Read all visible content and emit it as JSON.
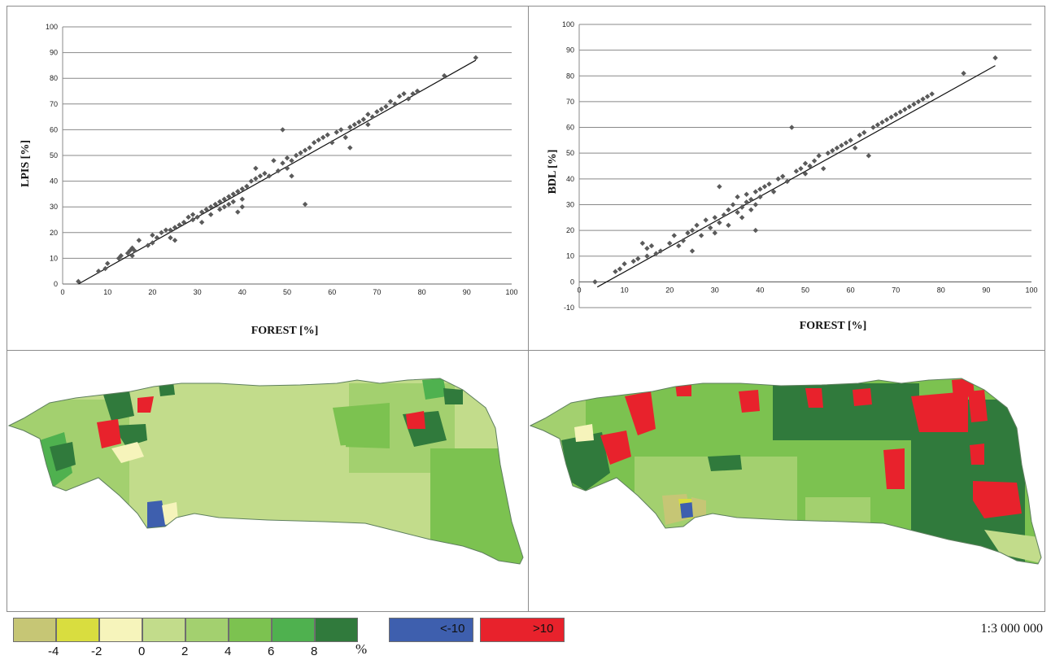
{
  "chart_data": [
    {
      "type": "scatter",
      "title": "",
      "xlabel": "FOREST [%]",
      "ylabel": "LPIS [%]",
      "xlim": [
        0,
        100
      ],
      "ylim": [
        0,
        100
      ],
      "xticks": [
        0,
        10,
        20,
        30,
        40,
        50,
        60,
        70,
        80,
        90,
        100
      ],
      "yticks": [
        0,
        10,
        20,
        30,
        40,
        50,
        60,
        70,
        80,
        90,
        100
      ],
      "grid": "horizontal",
      "trendline": {
        "x": [
          3.5,
          92
        ],
        "y": [
          0,
          87
        ]
      },
      "points": [
        [
          3.5,
          1
        ],
        [
          8,
          5
        ],
        [
          9.5,
          6
        ],
        [
          10,
          8
        ],
        [
          12.5,
          10
        ],
        [
          13,
          11
        ],
        [
          14.5,
          12
        ],
        [
          15,
          13
        ],
        [
          15.5,
          14
        ],
        [
          16,
          13
        ],
        [
          15.5,
          11
        ],
        [
          17,
          17
        ],
        [
          19,
          15
        ],
        [
          20,
          16
        ],
        [
          20,
          19
        ],
        [
          21,
          18
        ],
        [
          22,
          20
        ],
        [
          23,
          21
        ],
        [
          24,
          18
        ],
        [
          24,
          21
        ],
        [
          25,
          22
        ],
        [
          25,
          17
        ],
        [
          26,
          23
        ],
        [
          27,
          24
        ],
        [
          28,
          26
        ],
        [
          29,
          27
        ],
        [
          29,
          25
        ],
        [
          30,
          26
        ],
        [
          31,
          24
        ],
        [
          31,
          28
        ],
        [
          32,
          29
        ],
        [
          33,
          30
        ],
        [
          33,
          27
        ],
        [
          34,
          31
        ],
        [
          35,
          32
        ],
        [
          35,
          29
        ],
        [
          36,
          33
        ],
        [
          36,
          30
        ],
        [
          37,
          34
        ],
        [
          37,
          31
        ],
        [
          38,
          35
        ],
        [
          38,
          32
        ],
        [
          39,
          36
        ],
        [
          39,
          28
        ],
        [
          40,
          30
        ],
        [
          40,
          33
        ],
        [
          40,
          37
        ],
        [
          41,
          38
        ],
        [
          42,
          40
        ],
        [
          43,
          45
        ],
        [
          43,
          41
        ],
        [
          44,
          42
        ],
        [
          45,
          43
        ],
        [
          46,
          42
        ],
        [
          47,
          48
        ],
        [
          48,
          44
        ],
        [
          49,
          47
        ],
        [
          49,
          60
        ],
        [
          50,
          49
        ],
        [
          50,
          45
        ],
        [
          51,
          48
        ],
        [
          51,
          42
        ],
        [
          52,
          50
        ],
        [
          53,
          51
        ],
        [
          54,
          52
        ],
        [
          54,
          31
        ],
        [
          55,
          53
        ],
        [
          56,
          55
        ],
        [
          57,
          56
        ],
        [
          58,
          57
        ],
        [
          59,
          58
        ],
        [
          60,
          55
        ],
        [
          61,
          59
        ],
        [
          62,
          60
        ],
        [
          63,
          57
        ],
        [
          64,
          61
        ],
        [
          64,
          53
        ],
        [
          65,
          62
        ],
        [
          66,
          63
        ],
        [
          67,
          64
        ],
        [
          68,
          66
        ],
        [
          68,
          62
        ],
        [
          69,
          65
        ],
        [
          70,
          67
        ],
        [
          71,
          68
        ],
        [
          72,
          69
        ],
        [
          73,
          71
        ],
        [
          74,
          70
        ],
        [
          75,
          73
        ],
        [
          76,
          74
        ],
        [
          77,
          72
        ],
        [
          78,
          74
        ],
        [
          79,
          75
        ],
        [
          85,
          81
        ],
        [
          92,
          88
        ]
      ]
    },
    {
      "type": "scatter",
      "title": "",
      "xlabel": "FOREST [%]",
      "ylabel": "BDL [%]",
      "xlim": [
        0,
        100
      ],
      "ylim": [
        -10,
        100
      ],
      "xticks": [
        0,
        10,
        20,
        30,
        40,
        50,
        60,
        70,
        80,
        90,
        100
      ],
      "yticks": [
        -10,
        0,
        10,
        20,
        30,
        40,
        50,
        60,
        70,
        80,
        90,
        100
      ],
      "grid": "horizontal",
      "trendline": {
        "x": [
          4,
          92
        ],
        "y": [
          -2,
          84
        ]
      },
      "points": [
        [
          3.5,
          0
        ],
        [
          8,
          4
        ],
        [
          9,
          5
        ],
        [
          10,
          7
        ],
        [
          12,
          8
        ],
        [
          13,
          9
        ],
        [
          14,
          15
        ],
        [
          15,
          10
        ],
        [
          15,
          13
        ],
        [
          16,
          14
        ],
        [
          17,
          11
        ],
        [
          18,
          12
        ],
        [
          20,
          15
        ],
        [
          21,
          18
        ],
        [
          22,
          14
        ],
        [
          23,
          16
        ],
        [
          24,
          19
        ],
        [
          25,
          20
        ],
        [
          25,
          12
        ],
        [
          26,
          22
        ],
        [
          27,
          18
        ],
        [
          28,
          24
        ],
        [
          29,
          21
        ],
        [
          30,
          19
        ],
        [
          30,
          25
        ],
        [
          31,
          23
        ],
        [
          31,
          37
        ],
        [
          32,
          26
        ],
        [
          33,
          28
        ],
        [
          33,
          22
        ],
        [
          34,
          30
        ],
        [
          35,
          27
        ],
        [
          35,
          33
        ],
        [
          36,
          29
        ],
        [
          36,
          25
        ],
        [
          37,
          31
        ],
        [
          37,
          34
        ],
        [
          38,
          32
        ],
        [
          38,
          28
        ],
        [
          39,
          35
        ],
        [
          39,
          20
        ],
        [
          39,
          30
        ],
        [
          40,
          36
        ],
        [
          40,
          33
        ],
        [
          41,
          37
        ],
        [
          42,
          38
        ],
        [
          43,
          35
        ],
        [
          44,
          40
        ],
        [
          45,
          41
        ],
        [
          46,
          39
        ],
        [
          47,
          60
        ],
        [
          48,
          43
        ],
        [
          49,
          44
        ],
        [
          50,
          42
        ],
        [
          50,
          46
        ],
        [
          51,
          45
        ],
        [
          52,
          47
        ],
        [
          53,
          49
        ],
        [
          54,
          44
        ],
        [
          55,
          50
        ],
        [
          56,
          51
        ],
        [
          57,
          52
        ],
        [
          58,
          53
        ],
        [
          59,
          54
        ],
        [
          60,
          55
        ],
        [
          61,
          52
        ],
        [
          62,
          57
        ],
        [
          63,
          58
        ],
        [
          64,
          49
        ],
        [
          65,
          60
        ],
        [
          66,
          61
        ],
        [
          67,
          62
        ],
        [
          68,
          63
        ],
        [
          69,
          64
        ],
        [
          70,
          65
        ],
        [
          71,
          66
        ],
        [
          72,
          67
        ],
        [
          73,
          68
        ],
        [
          74,
          69
        ],
        [
          75,
          70
        ],
        [
          76,
          71
        ],
        [
          77,
          72
        ],
        [
          78,
          73
        ],
        [
          85,
          81
        ],
        [
          92,
          87
        ]
      ]
    }
  ],
  "legend": {
    "scale_colors": [
      "#c6c675",
      "#d9dd3f",
      "#f6f4bb",
      "#c2dc8b",
      "#a3d06f",
      "#7cc250",
      "#4fb14f",
      "#307a3c"
    ],
    "scale_labels": [
      "-4",
      "-2",
      "0",
      "2",
      "4",
      "6",
      "8"
    ],
    "unit": "%",
    "categories": [
      {
        "label": "<-10",
        "color": "#3e5fae"
      },
      {
        "label": ">10",
        "color": "#e8222c"
      }
    ]
  },
  "scale_text": "1:3 000 000"
}
